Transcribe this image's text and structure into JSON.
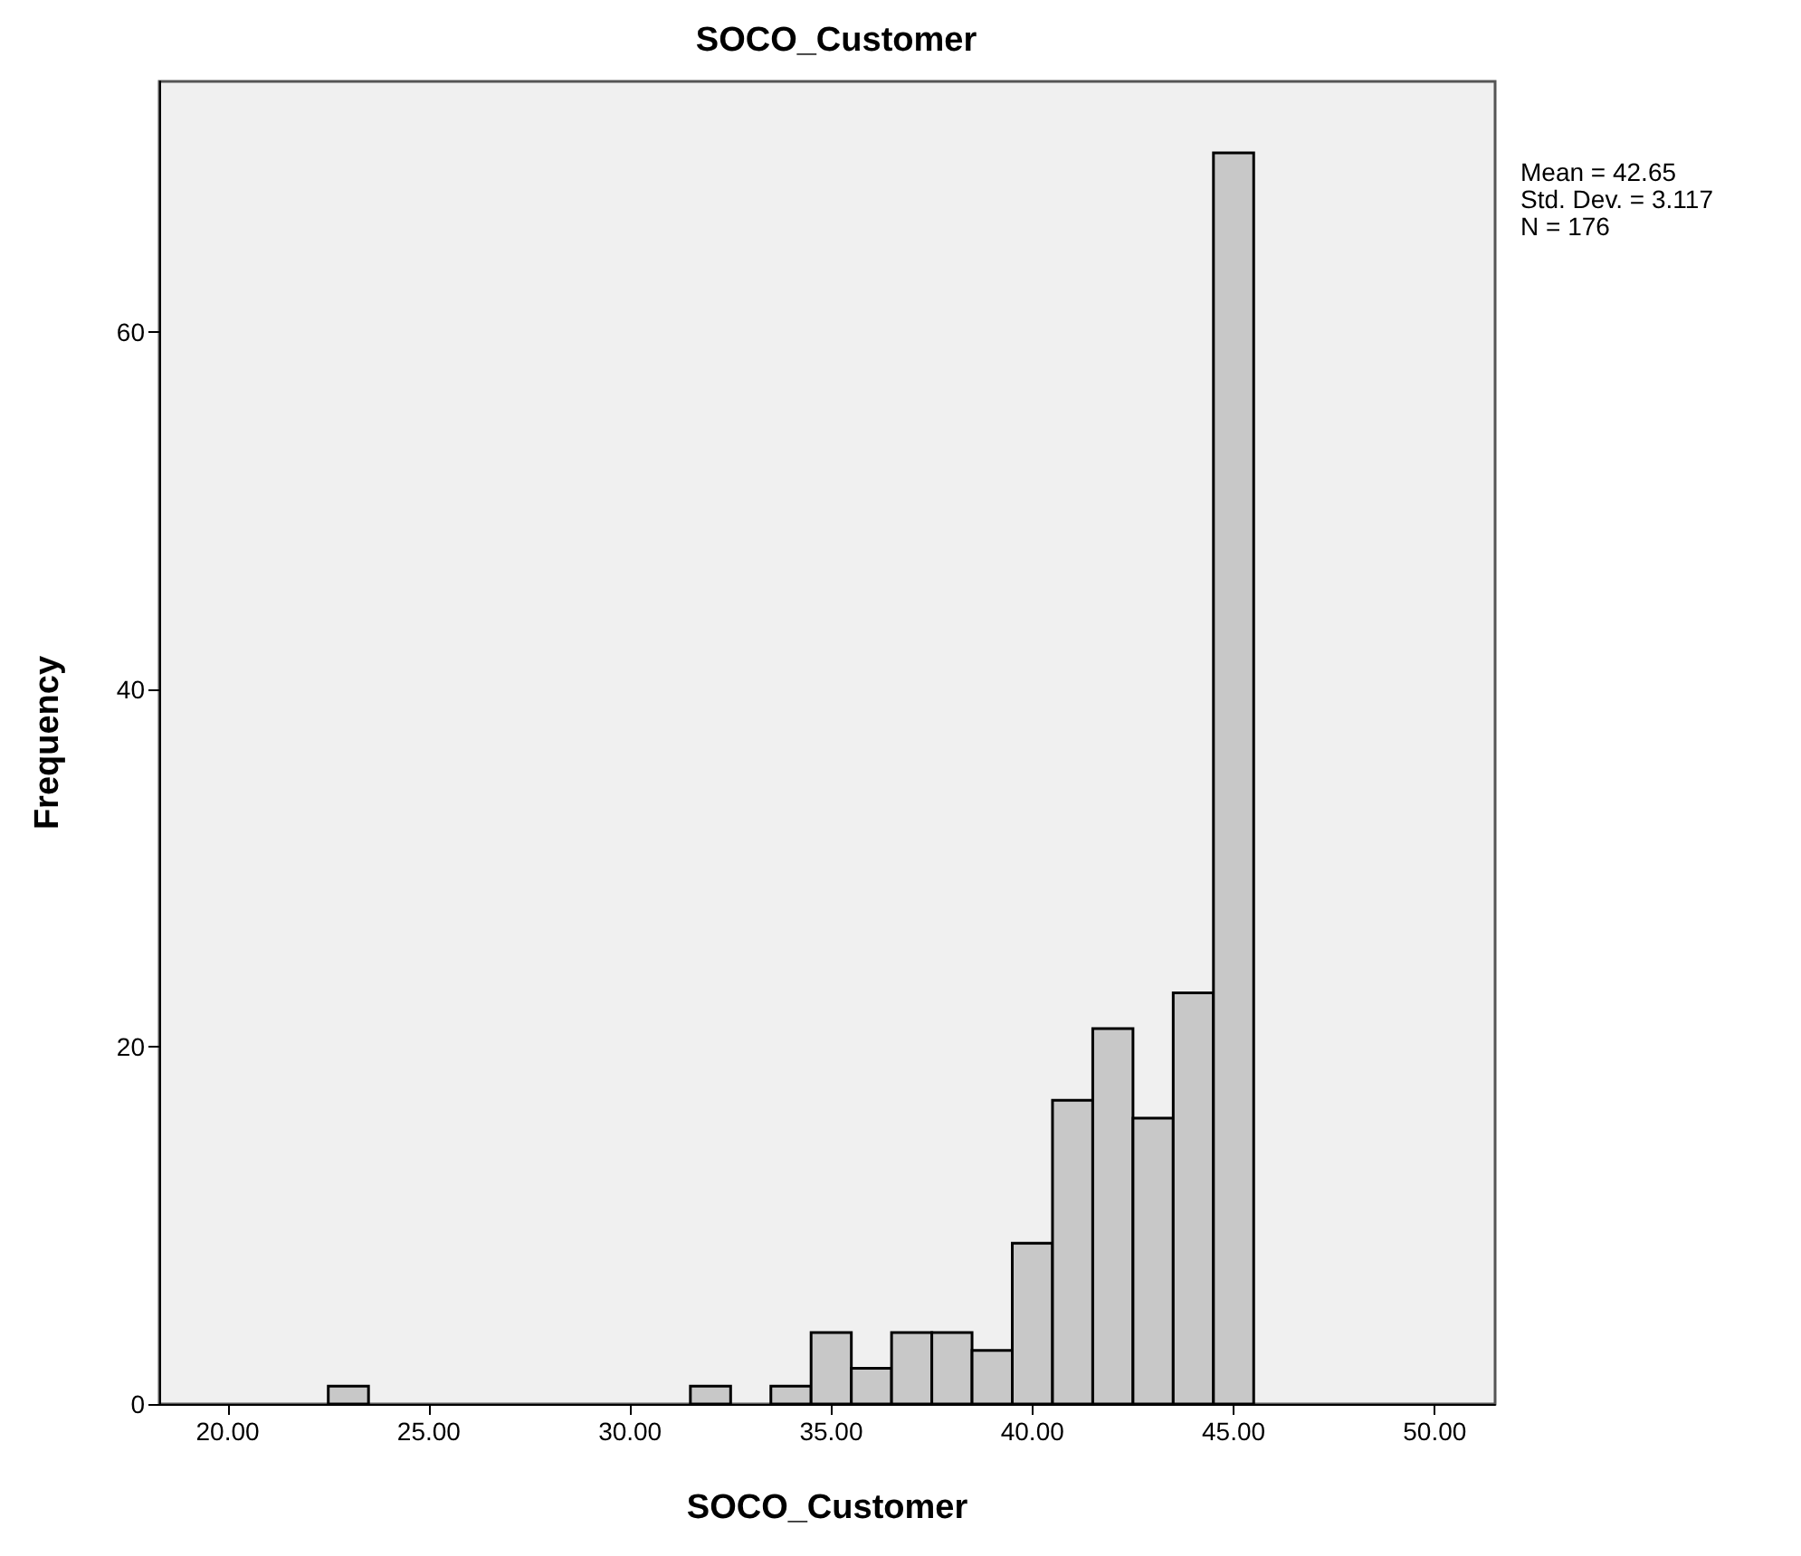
{
  "chart_data": {
    "type": "histogram",
    "title": "SOCO_Customer",
    "xlabel": "SOCO_Customer",
    "ylabel": "Frequency",
    "bins": [
      22.5,
      23.5,
      24.5,
      25.5,
      26.5,
      27.5,
      28.5,
      29.5,
      30.5,
      31.5,
      32.5,
      33.5,
      34.5,
      35.5,
      36.5,
      37.5,
      38.5,
      39.5,
      40.5,
      41.5,
      42.5,
      43.5,
      44.5,
      45.5
    ],
    "values": [
      1,
      0,
      0,
      0,
      0,
      0,
      0,
      0,
      0,
      1,
      0,
      1,
      4,
      2,
      4,
      4,
      3,
      9,
      17,
      21,
      16,
      23,
      70
    ],
    "color": "#c8c8c8",
    "xlim": [
      18.3,
      51.5
    ],
    "xticks": [
      {
        "value": 20,
        "label": "20.00"
      },
      {
        "value": 25,
        "label": "25.00"
      },
      {
        "value": 30,
        "label": "30.00"
      },
      {
        "value": 35,
        "label": "35.00"
      },
      {
        "value": 40,
        "label": "40.00"
      },
      {
        "value": 45,
        "label": "45.00"
      },
      {
        "value": 50,
        "label": "50.00"
      }
    ],
    "ylim": [
      0,
      74
    ],
    "yticks": [
      0,
      20,
      40,
      60
    ],
    "annotations": [
      "Mean = 42.65",
      "Std. Dev. = 3.117",
      "N = 176"
    ]
  }
}
